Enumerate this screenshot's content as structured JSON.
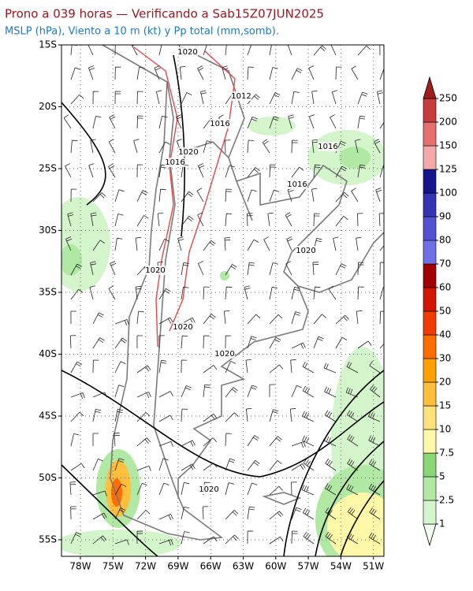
{
  "header": {
    "title": "Prono a 039 horas — Verificando a Sab15Z07JUN2025",
    "subtitle": "MSLP (hPa), Viento a 10 m (kt) y Pp total (mm,somb)."
  },
  "map": {
    "lat_labels": [
      "15S",
      "20S",
      "25S",
      "30S",
      "35S",
      "40S",
      "45S",
      "50S",
      "55S"
    ],
    "lon_labels": [
      "78W",
      "75W",
      "72W",
      "69W",
      "66W",
      "63W",
      "60W",
      "57W",
      "54W",
      "51W"
    ],
    "isobar_labels": [
      1020,
      1012,
      1016,
      1020,
      1016,
      1016,
      1016,
      1020,
      1020,
      1020,
      1020,
      1020
    ]
  },
  "legend": {
    "levels": [
      1,
      2.5,
      5,
      7.5,
      10,
      15,
      20,
      30,
      40,
      50,
      60,
      70,
      80,
      90,
      100,
      125,
      150,
      200,
      250
    ],
    "colors": [
      "#f4fff0",
      "#d4f4cc",
      "#b0e8a4",
      "#88d676",
      "#fff8a8",
      "#ffe27c",
      "#ffbe3c",
      "#ffa000",
      "#ff6c00",
      "#f03c00",
      "#d21400",
      "#a00000",
      "#7070e6",
      "#5252d2",
      "#3434b4",
      "#16168c",
      "#f5a8a8",
      "#e67070",
      "#c83c3c",
      "#a01e1e"
    ]
  }
}
